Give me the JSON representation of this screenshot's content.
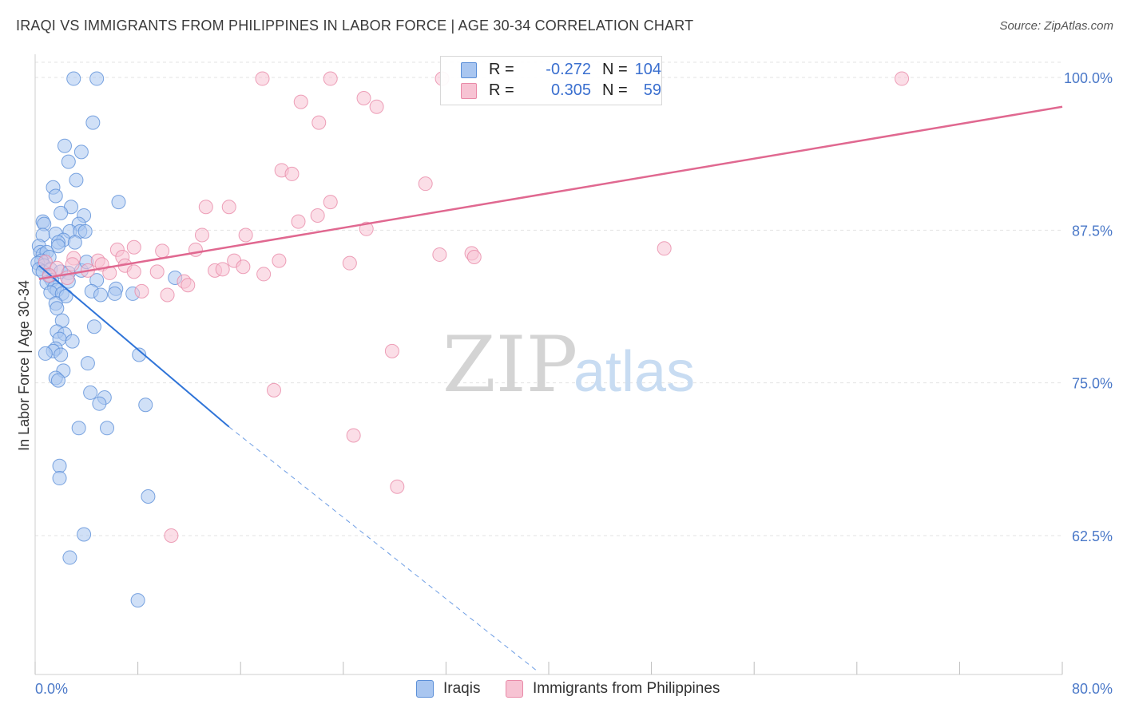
{
  "title": "IRAQI VS IMMIGRANTS FROM PHILIPPINES IN LABOR FORCE | AGE 30-34 CORRELATION CHART",
  "source": "Source: ZipAtlas.com",
  "watermark": {
    "zip": "ZIP",
    "atlas": "atlas"
  },
  "legend": {
    "iraqis": {
      "r_label": "R =",
      "r_value": "-0.272",
      "n_label": "N =",
      "n_value": "104"
    },
    "philippines": {
      "r_label": "R =",
      "r_value": "0.305",
      "n_label": "N =",
      "n_value": "59"
    }
  },
  "colors": {
    "iraqis_fill": "#a9c6f0",
    "iraqis_stroke": "#5b8fd8",
    "iraqis_line": "#2f74d8",
    "philippines_fill": "#f7c3d3",
    "philippines_stroke": "#e98aa8",
    "philippines_line": "#e06890",
    "tick_label": "#4a78c8",
    "grid": "#e3e3e3"
  },
  "chart_data": {
    "type": "scatter",
    "title": "IRAQI VS IMMIGRANTS FROM PHILIPPINES IN LABOR FORCE | AGE 30-34 CORRELATION CHART",
    "xlabel": "",
    "ylabel": "In Labor Force | Age 30-34",
    "xlim": [
      0,
      80
    ],
    "ylim": [
      51.5,
      101
    ],
    "x_tick_labels": [
      "0.0%",
      "80.0%"
    ],
    "y_ticks": [
      62.5,
      75.0,
      87.5,
      100.0
    ],
    "y_tick_labels": [
      "62.5%",
      "75.0%",
      "87.5%",
      "100.0%"
    ],
    "grid": true,
    "legend_position": "bottom",
    "series": [
      {
        "name": "Iraqis",
        "trend": {
          "x": [
            0.3,
            15.1
          ],
          "y": [
            84.6,
            71.4
          ]
        },
        "trend_extension": {
          "x": [
            15.1,
            39.0
          ],
          "y": [
            71.4,
            51.5
          ]
        },
        "points": [
          [
            3.0,
            99.9
          ],
          [
            4.8,
            99.9
          ],
          [
            4.5,
            96.3
          ],
          [
            2.3,
            94.4
          ],
          [
            3.6,
            93.9
          ],
          [
            2.6,
            93.1
          ],
          [
            3.2,
            91.6
          ],
          [
            1.4,
            91.0
          ],
          [
            1.6,
            90.3
          ],
          [
            6.5,
            89.8
          ],
          [
            2.8,
            89.4
          ],
          [
            2.0,
            88.9
          ],
          [
            3.8,
            88.7
          ],
          [
            0.6,
            88.2
          ],
          [
            0.7,
            88.0
          ],
          [
            3.4,
            88.0
          ],
          [
            2.7,
            87.4
          ],
          [
            3.5,
            87.4
          ],
          [
            3.9,
            87.4
          ],
          [
            0.6,
            87.1
          ],
          [
            1.6,
            87.2
          ],
          [
            2.2,
            86.7
          ],
          [
            1.8,
            86.5
          ],
          [
            3.1,
            86.5
          ],
          [
            0.3,
            86.2
          ],
          [
            1.8,
            86.2
          ],
          [
            0.4,
            85.7
          ],
          [
            0.6,
            85.5
          ],
          [
            0.9,
            85.7
          ],
          [
            1.1,
            85.3
          ],
          [
            0.5,
            85.0
          ],
          [
            0.2,
            84.8
          ],
          [
            0.7,
            84.6
          ],
          [
            0.3,
            84.3
          ],
          [
            0.6,
            84.1
          ],
          [
            1.2,
            84.3
          ],
          [
            2.0,
            84.1
          ],
          [
            2.6,
            84.0
          ],
          [
            3.6,
            84.2
          ],
          [
            4.0,
            84.9
          ],
          [
            1.1,
            83.7
          ],
          [
            1.3,
            83.4
          ],
          [
            0.9,
            83.2
          ],
          [
            2.6,
            83.3
          ],
          [
            4.8,
            83.4
          ],
          [
            10.9,
            83.6
          ],
          [
            1.5,
            82.8
          ],
          [
            1.7,
            82.6
          ],
          [
            6.3,
            82.7
          ],
          [
            4.4,
            82.5
          ],
          [
            1.2,
            82.4
          ],
          [
            2.1,
            82.3
          ],
          [
            2.4,
            82.1
          ],
          [
            5.1,
            82.2
          ],
          [
            6.2,
            82.3
          ],
          [
            7.6,
            82.3
          ],
          [
            1.6,
            81.5
          ],
          [
            1.7,
            81.1
          ],
          [
            2.1,
            80.1
          ],
          [
            4.6,
            79.6
          ],
          [
            1.7,
            79.2
          ],
          [
            2.3,
            79.0
          ],
          [
            1.9,
            78.6
          ],
          [
            2.9,
            78.4
          ],
          [
            1.6,
            77.8
          ],
          [
            1.4,
            77.6
          ],
          [
            0.8,
            77.4
          ],
          [
            2.0,
            77.3
          ],
          [
            8.1,
            77.3
          ],
          [
            4.1,
            76.6
          ],
          [
            2.2,
            76.0
          ],
          [
            1.6,
            75.4
          ],
          [
            1.8,
            75.2
          ],
          [
            4.3,
            74.2
          ],
          [
            5.4,
            73.8
          ],
          [
            5.0,
            73.3
          ],
          [
            8.6,
            73.2
          ],
          [
            3.4,
            71.3
          ],
          [
            5.6,
            71.3
          ],
          [
            1.9,
            68.2
          ],
          [
            1.9,
            67.2
          ],
          [
            8.8,
            65.7
          ],
          [
            3.8,
            62.6
          ],
          [
            2.7,
            60.7
          ],
          [
            8.0,
            57.2
          ]
        ]
      },
      {
        "name": "Immigrants from Philippines",
        "trend": {
          "x": [
            0.3,
            80.0
          ],
          "y": [
            83.5,
            97.6
          ]
        },
        "points": [
          [
            17.7,
            99.9
          ],
          [
            23.0,
            99.9
          ],
          [
            31.7,
            99.9
          ],
          [
            67.5,
            99.9
          ],
          [
            25.6,
            98.3
          ],
          [
            20.7,
            98.0
          ],
          [
            26.6,
            97.6
          ],
          [
            22.1,
            96.3
          ],
          [
            19.2,
            92.4
          ],
          [
            20.0,
            92.1
          ],
          [
            30.4,
            91.3
          ],
          [
            23.0,
            89.8
          ],
          [
            13.3,
            89.4
          ],
          [
            15.1,
            89.4
          ],
          [
            22.0,
            88.7
          ],
          [
            20.5,
            88.2
          ],
          [
            25.8,
            87.6
          ],
          [
            13.0,
            87.1
          ],
          [
            16.4,
            87.1
          ],
          [
            7.7,
            86.1
          ],
          [
            6.4,
            85.9
          ],
          [
            49.0,
            86.0
          ],
          [
            9.9,
            85.8
          ],
          [
            12.5,
            85.9
          ],
          [
            31.5,
            85.5
          ],
          [
            34.0,
            85.6
          ],
          [
            34.2,
            85.3
          ],
          [
            6.8,
            85.3
          ],
          [
            3.0,
            85.2
          ],
          [
            4.9,
            85.0
          ],
          [
            15.5,
            85.0
          ],
          [
            19.0,
            85.0
          ],
          [
            5.2,
            84.7
          ],
          [
            7.0,
            84.6
          ],
          [
            24.5,
            84.8
          ],
          [
            0.8,
            84.9
          ],
          [
            2.9,
            84.7
          ],
          [
            16.2,
            84.5
          ],
          [
            1.7,
            84.4
          ],
          [
            14.0,
            84.2
          ],
          [
            14.6,
            84.3
          ],
          [
            4.1,
            84.2
          ],
          [
            5.8,
            84.0
          ],
          [
            7.7,
            84.1
          ],
          [
            9.5,
            84.1
          ],
          [
            17.8,
            83.9
          ],
          [
            1.1,
            83.8
          ],
          [
            2.5,
            83.6
          ],
          [
            11.6,
            83.3
          ],
          [
            11.9,
            83.0
          ],
          [
            8.3,
            82.5
          ],
          [
            10.3,
            82.2
          ],
          [
            27.8,
            77.6
          ],
          [
            18.6,
            74.4
          ],
          [
            24.8,
            70.7
          ],
          [
            28.2,
            66.5
          ],
          [
            10.6,
            62.5
          ]
        ]
      }
    ]
  },
  "bottom_legend": {
    "iraqis": "Iraqis",
    "philippines": "Immigrants from Philippines"
  }
}
